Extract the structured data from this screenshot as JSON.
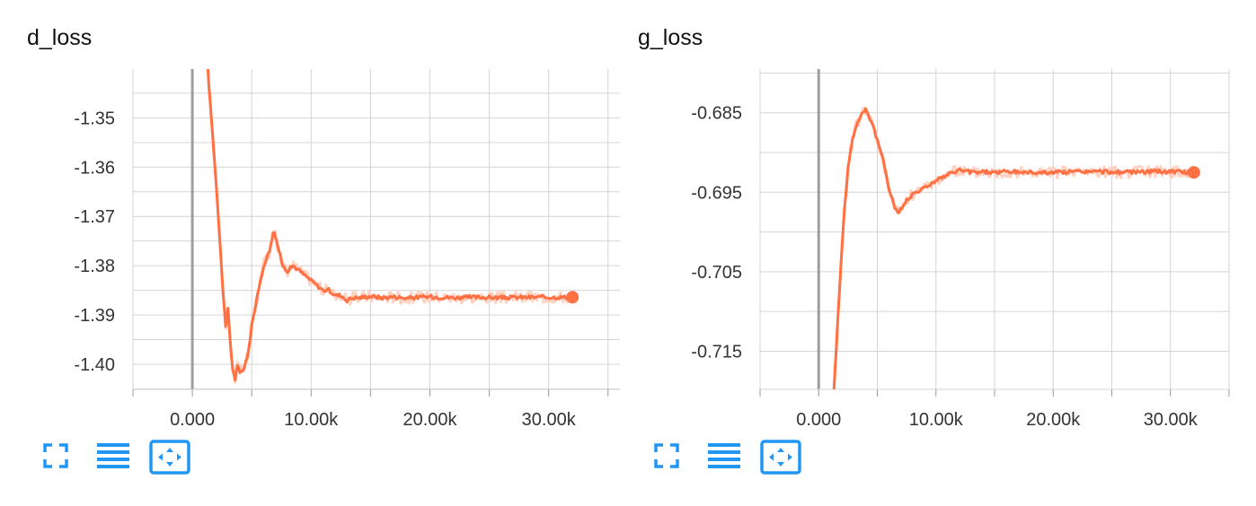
{
  "colors": {
    "accent": "#ff7043",
    "accent_faint": "#ffd2c2",
    "grid": "#d4d4d4",
    "zero_line": "#9e9e9e",
    "icon": "#2196f3"
  },
  "toolbar": {
    "icons": [
      "expand-icon",
      "data-list-icon",
      "fit-domain-icon"
    ]
  },
  "chart_data": [
    {
      "type": "line",
      "title": "d_loss",
      "xlabel": "",
      "ylabel": "",
      "xlim": [
        -5000,
        36000
      ],
      "ylim": [
        -1.4051,
        -1.3401
      ],
      "xticks": [
        0,
        10000,
        20000,
        30000
      ],
      "xtick_labels": [
        "0.000",
        "10.00k",
        "20.00k",
        "30.00k"
      ],
      "yticks": [
        -1.35,
        -1.36,
        -1.37,
        -1.38,
        -1.39,
        -1.4
      ],
      "ytick_labels": [
        "-1.35",
        "-1.36",
        "-1.37",
        "-1.38",
        "-1.39",
        "-1.40"
      ],
      "grid": true,
      "series": [
        {
          "name": "d_loss",
          "x": [
            1300,
            1600,
            2000,
            2400,
            2600,
            2800,
            3000,
            3200,
            3400,
            3600,
            3800,
            4000,
            4300,
            4700,
            5000,
            5500,
            6000,
            6500,
            6800,
            7000,
            7300,
            7600,
            8000,
            8500,
            9000,
            9500,
            10000,
            10500,
            11000,
            11500,
            12000,
            12500,
            13000,
            13500,
            14000,
            15000,
            16000,
            17000,
            18000,
            19000,
            20000,
            22000,
            24000,
            26000,
            28000,
            30000,
            32000
          ],
          "y": [
            -1.3401,
            -1.35,
            -1.363,
            -1.378,
            -1.386,
            -1.392,
            -1.389,
            -1.396,
            -1.401,
            -1.403,
            -1.4,
            -1.402,
            -1.401,
            -1.398,
            -1.392,
            -1.386,
            -1.38,
            -1.377,
            -1.373,
            -1.374,
            -1.377,
            -1.38,
            -1.381,
            -1.38,
            -1.381,
            -1.382,
            -1.383,
            -1.384,
            -1.385,
            -1.385,
            -1.386,
            -1.386,
            -1.387,
            -1.3865,
            -1.3865,
            -1.3862,
            -1.3865,
            -1.3863,
            -1.3866,
            -1.3864,
            -1.3863,
            -1.3865,
            -1.3864,
            -1.3865,
            -1.3864,
            -1.3864,
            -1.3864
          ]
        }
      ]
    },
    {
      "type": "line",
      "title": "g_loss",
      "xlabel": "",
      "ylabel": "",
      "xlim": [
        -5000,
        35000
      ],
      "ylim": [
        -0.7198,
        -0.6795
      ],
      "xticks": [
        0,
        10000,
        20000,
        30000
      ],
      "xtick_labels": [
        "0.000",
        "10.00k",
        "20.00k",
        "30.00k"
      ],
      "yticks": [
        -0.685,
        -0.695,
        -0.705,
        -0.715
      ],
      "ytick_labels": [
        "-0.685",
        "-0.695",
        "-0.705",
        "-0.715"
      ],
      "grid": true,
      "series": [
        {
          "name": "g_loss",
          "x": [
            1300,
            1600,
            1900,
            2200,
            2500,
            2800,
            3100,
            3400,
            3700,
            4000,
            4300,
            4600,
            5000,
            5500,
            6000,
            6500,
            6800,
            7100,
            7500,
            8000,
            8500,
            9000,
            9500,
            10000,
            10500,
            11000,
            11500,
            12000,
            13000,
            14000,
            15000,
            16000,
            18000,
            20000,
            22000,
            24000,
            26000,
            28000,
            30000,
            32000
          ],
          "y": [
            -0.7198,
            -0.712,
            -0.704,
            -0.697,
            -0.692,
            -0.689,
            -0.687,
            -0.686,
            -0.685,
            -0.6845,
            -0.6855,
            -0.6865,
            -0.6885,
            -0.691,
            -0.6945,
            -0.697,
            -0.6975,
            -0.697,
            -0.696,
            -0.6952,
            -0.6948,
            -0.6945,
            -0.694,
            -0.6935,
            -0.6932,
            -0.6928,
            -0.6925,
            -0.6922,
            -0.6925,
            -0.6924,
            -0.6925,
            -0.6924,
            -0.6925,
            -0.6925,
            -0.6924,
            -0.6924,
            -0.6925,
            -0.6924,
            -0.6924,
            -0.6925
          ]
        }
      ]
    }
  ]
}
